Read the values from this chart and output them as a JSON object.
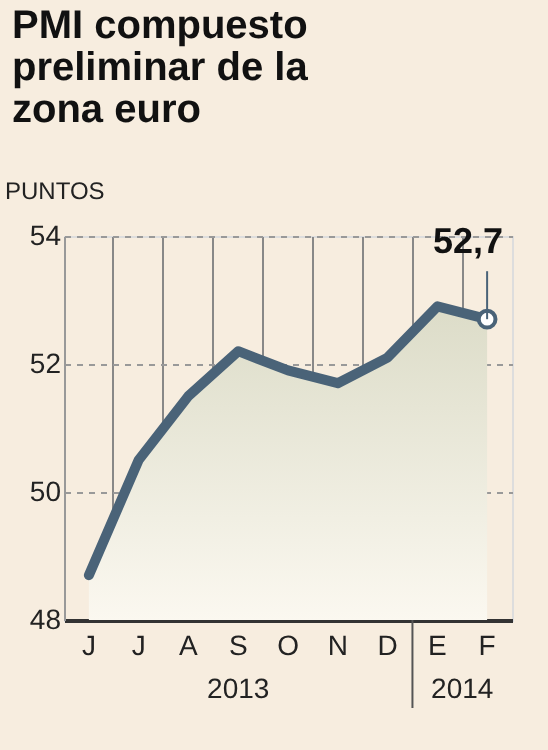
{
  "chart_data": {
    "type": "area",
    "title": "PMI compuesto\npreliminar de la\nzona euro",
    "ylabel": "PUNTOS",
    "categories": [
      "J",
      "J",
      "A",
      "S",
      "O",
      "N",
      "D",
      "E",
      "F"
    ],
    "series": [
      {
        "color": "#4a6378",
        "values": [
          48.7,
          50.5,
          51.5,
          52.2,
          51.9,
          51.7,
          52.1,
          52.9,
          52.7
        ],
        "value_labels": [
          null,
          null,
          null,
          null,
          null,
          null,
          null,
          null,
          "52,7"
        ]
      }
    ],
    "ylim": [
      48,
      54
    ],
    "yticks": [
      48,
      50,
      52,
      54
    ],
    "grid": true,
    "annotations": [
      "2013",
      "2014"
    ]
  }
}
